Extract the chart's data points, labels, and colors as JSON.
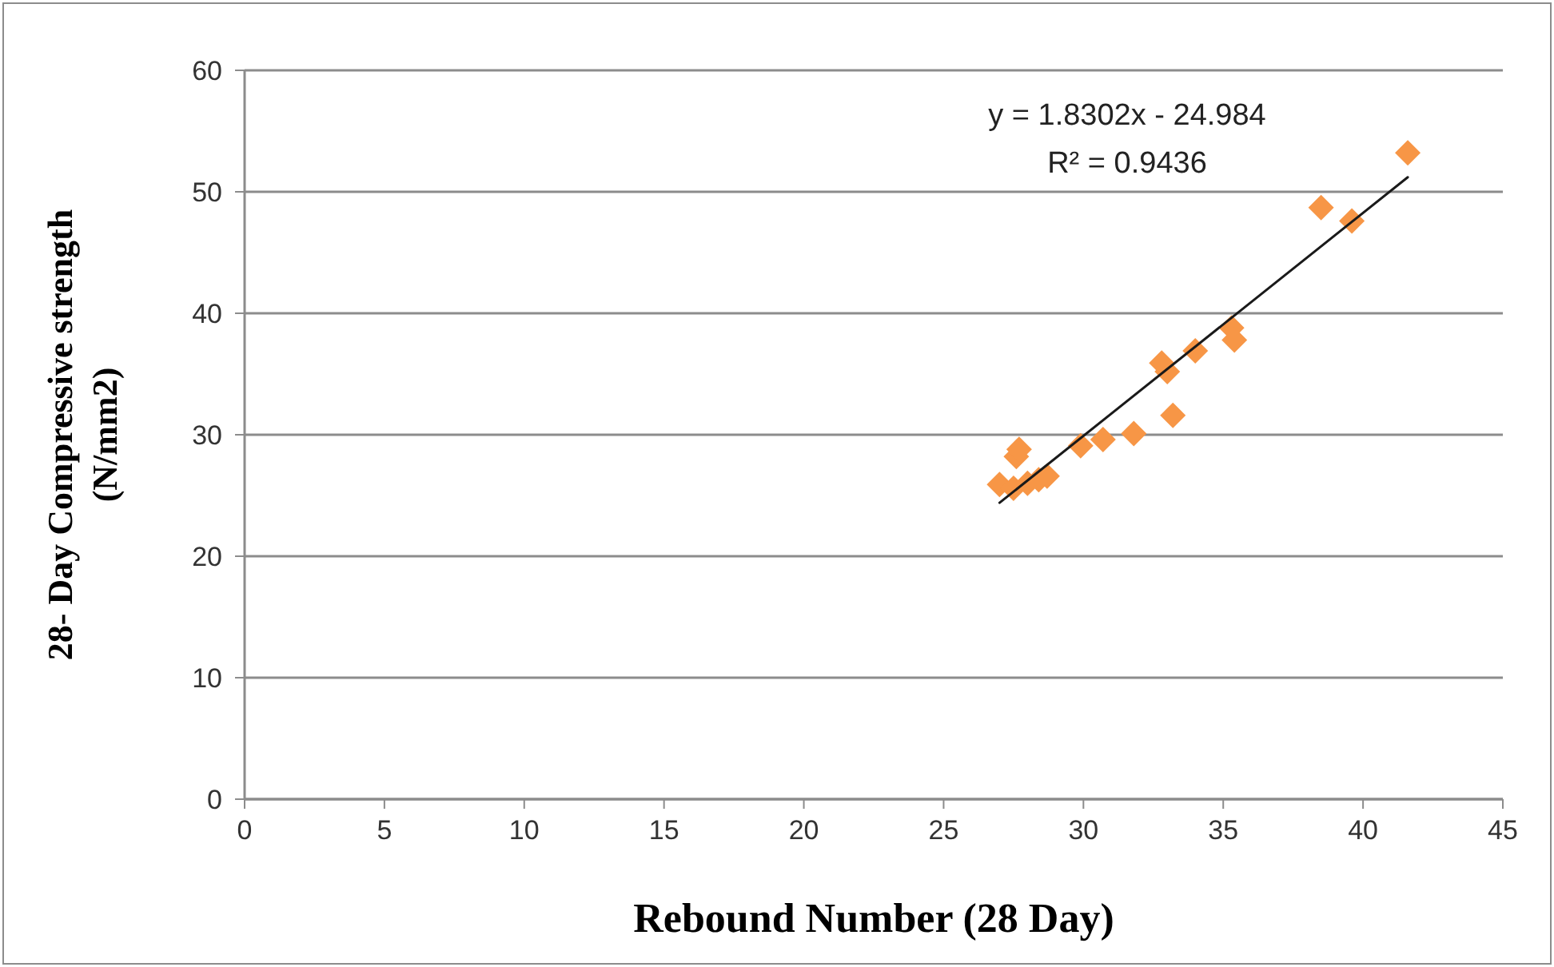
{
  "chart_data": {
    "type": "scatter",
    "xlabel": "Rebound Number (28 Day)",
    "ylabel": "28- Day Compressive strength\n(N/mm2)",
    "xlim": [
      0,
      45
    ],
    "xticks": [
      0,
      5,
      10,
      15,
      20,
      25,
      30,
      35,
      40,
      45
    ],
    "ylim": [
      0,
      60
    ],
    "yticks": [
      0,
      10,
      20,
      30,
      40,
      50,
      60
    ],
    "grid": "y",
    "marker": "diamond",
    "annotations": [
      "y = 1.8302x - 24.984",
      "R² = 0.9436"
    ],
    "series": [
      {
        "color": "#f79646",
        "x": [
          27.0,
          27.5,
          27.6,
          27.7,
          28.0,
          28.4,
          28.7,
          29.9,
          30.7,
          31.8,
          32.8,
          33.0,
          33.2,
          34.0,
          35.3,
          35.4,
          38.5,
          39.6,
          41.6
        ],
        "values": [
          25.9,
          25.6,
          28.2,
          28.8,
          26.0,
          26.3,
          26.6,
          29.1,
          29.6,
          30.1,
          35.9,
          35.2,
          31.6,
          36.9,
          38.8,
          37.8,
          48.7,
          47.6,
          53.2
        ]
      },
      {
        "type": "line",
        "color": "#1a1a1a",
        "x": [
          27.0,
          41.6
        ],
        "values": [
          24.4,
          51.2
        ],
        "line_style": "solid",
        "marker": "none"
      }
    ]
  }
}
